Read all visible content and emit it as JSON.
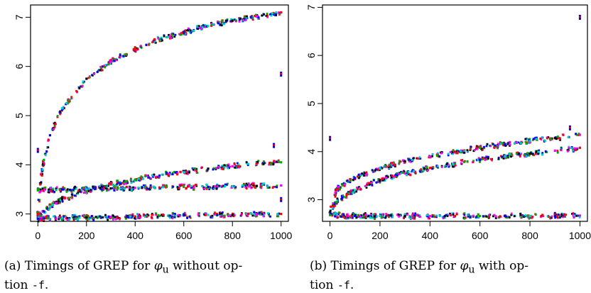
{
  "chart_data": [
    {
      "type": "scatter",
      "title": "",
      "xlabel": "",
      "ylabel": "",
      "xlim": [
        -30,
        1030
      ],
      "ylim": [
        2.85,
        7.25
      ],
      "xticks": [
        "0",
        "200",
        "400",
        "600",
        "800",
        "1000"
      ],
      "xtick_values": [
        0,
        200,
        400,
        600,
        800,
        1000
      ],
      "yticks": [
        "3",
        "4",
        "5",
        "6",
        "7"
      ],
      "ytick_values": [
        3,
        4,
        5,
        6,
        7
      ],
      "grid": false,
      "legend": "none",
      "series_colors": [
        "#ff00ff",
        "#ff0000",
        "#00aa00",
        "#0000ff",
        "#00d0d0",
        "#000000"
      ],
      "series": [
        {
          "name": "",
          "x": [
            0,
            10,
            25,
            50,
            100,
            200,
            300,
            400,
            500,
            600,
            700,
            800,
            900,
            1000
          ],
          "y": [
            3.0,
            3.6,
            4.1,
            4.6,
            5.15,
            5.75,
            6.1,
            6.35,
            6.55,
            6.7,
            6.82,
            6.93,
            7.02,
            7.1
          ]
        },
        {
          "name": "",
          "x": [
            0,
            10,
            25,
            50,
            100,
            200,
            300,
            400,
            500,
            600,
            700,
            800,
            900,
            1000
          ],
          "y": [
            3.0,
            2.97,
            3.05,
            3.15,
            3.3,
            3.47,
            3.6,
            3.7,
            3.78,
            3.85,
            3.92,
            3.97,
            4.02,
            4.05
          ]
        },
        {
          "name": "",
          "x": [
            0,
            100,
            200,
            300,
            400,
            500,
            600,
            700,
            800,
            900,
            1000
          ],
          "y": [
            3.48,
            3.5,
            3.5,
            3.52,
            3.53,
            3.54,
            3.55,
            3.55,
            3.56,
            3.57,
            3.58
          ]
        },
        {
          "name": "",
          "x": [
            0,
            100,
            200,
            300,
            400,
            500,
            600,
            700,
            800,
            900,
            1000
          ],
          "y": [
            2.9,
            2.92,
            2.93,
            2.94,
            2.95,
            2.96,
            2.97,
            2.98,
            2.98,
            2.99,
            3.0
          ]
        }
      ],
      "outliers": [
        {
          "x": 1000,
          "y": 5.85
        },
        {
          "x": 0,
          "y": 4.3
        },
        {
          "x": 970,
          "y": 4.4
        },
        {
          "x": 1000,
          "y": 3.3
        }
      ]
    },
    {
      "type": "scatter",
      "title": "",
      "xlabel": "",
      "ylabel": "",
      "xlim": [
        -30,
        1030
      ],
      "ylim": [
        2.55,
        7.05
      ],
      "xticks": [
        "0",
        "200",
        "400",
        "600",
        "800",
        "1000"
      ],
      "xtick_values": [
        0,
        200,
        400,
        600,
        800,
        1000
      ],
      "yticks": [
        "3",
        "4",
        "5",
        "6",
        "7"
      ],
      "ytick_values": [
        3,
        4,
        5,
        6,
        7
      ],
      "grid": false,
      "legend": "none",
      "series_colors": [
        "#ff00ff",
        "#ff0000",
        "#00aa00",
        "#0000ff",
        "#00d0d0",
        "#000000"
      ],
      "series": [
        {
          "name": "",
          "x": [
            0,
            25,
            50,
            100,
            200,
            300,
            400,
            500,
            600,
            700,
            800,
            900,
            1000
          ],
          "y": [
            2.7,
            3.2,
            3.3,
            3.45,
            3.65,
            3.8,
            3.9,
            4.0,
            4.08,
            4.15,
            4.22,
            4.28,
            4.35
          ]
        },
        {
          "name": "",
          "x": [
            0,
            25,
            50,
            100,
            200,
            300,
            400,
            500,
            600,
            700,
            800,
            900,
            1000
          ],
          "y": [
            2.7,
            2.95,
            3.05,
            3.2,
            3.4,
            3.55,
            3.66,
            3.75,
            3.83,
            3.9,
            3.96,
            4.02,
            4.08
          ]
        },
        {
          "name": "",
          "x": [
            0,
            100,
            200,
            300,
            400,
            500,
            600,
            700,
            800,
            900,
            1000
          ],
          "y": [
            2.68,
            2.66,
            2.66,
            2.66,
            2.66,
            2.66,
            2.66,
            2.66,
            2.66,
            2.66,
            2.67
          ]
        }
      ],
      "outliers": [
        {
          "x": 1000,
          "y": 6.8
        },
        {
          "x": 0,
          "y": 4.28
        },
        {
          "x": 900,
          "y": 2.7
        },
        {
          "x": 960,
          "y": 4.5
        }
      ]
    }
  ],
  "captions": [
    {
      "label": "(a) Timings of GREP for",
      "symbol": "φ",
      "subscript": "u",
      "rest": "without op-",
      "line2_prefix": "tion",
      "option": "-f",
      "line2_suffix": "."
    },
    {
      "label": "(b) Timings of GREP for",
      "symbol": "φ",
      "subscript": "u",
      "rest": "with op-",
      "line2_prefix": "tion",
      "option": "-f",
      "line2_suffix": "."
    }
  ]
}
